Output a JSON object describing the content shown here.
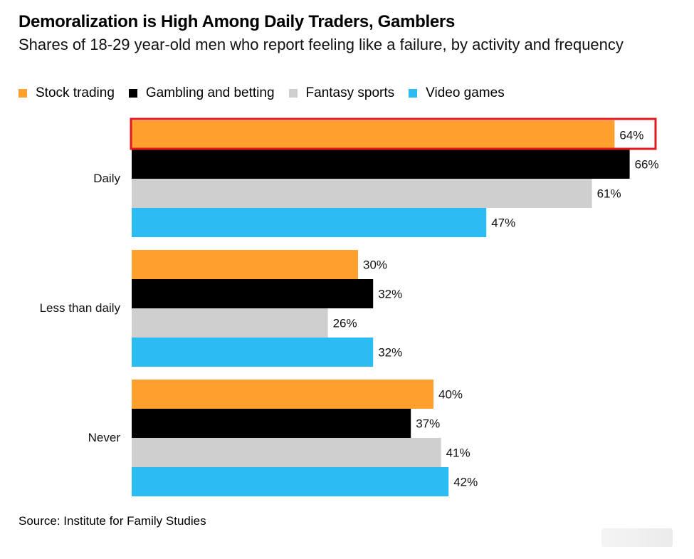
{
  "title": "Demoralization is High Among Daily Traders, Gamblers",
  "subtitle": "Shares of 18-29 year-old men who report feeling like a failure, by activity and frequency",
  "source": "Source: Institute for Family Studies",
  "colors": {
    "Stock trading": "#ff9f2e",
    "Gambling and betting": "#000000",
    "Fantasy sports": "#cfcfcf",
    "Video games": "#2bbcf3",
    "highlight": "#e0191f"
  },
  "chart_data": {
    "type": "bar",
    "orientation": "horizontal",
    "title": "Demoralization is High Among Daily Traders, Gamblers",
    "subtitle": "Shares of 18-29 year-old men who report feeling like a failure, by activity and frequency",
    "categories": [
      "Daily",
      "Less than daily",
      "Never"
    ],
    "series": [
      {
        "name": "Stock trading",
        "values": [
          64,
          30,
          40
        ],
        "labels": [
          "64%",
          "30%",
          "40%"
        ]
      },
      {
        "name": "Gambling and betting",
        "values": [
          66,
          32,
          37
        ],
        "labels": [
          "66%",
          "32%",
          "37%"
        ]
      },
      {
        "name": "Fantasy sports",
        "values": [
          61,
          26,
          41
        ],
        "labels": [
          "61%",
          "26%",
          "41%"
        ]
      },
      {
        "name": "Video games",
        "values": [
          47,
          32,
          42
        ],
        "labels": [
          "47%",
          "32%",
          "42%"
        ]
      }
    ],
    "unit": "%",
    "xlim": [
      0,
      66
    ],
    "grid": false,
    "legend": "top",
    "highlight": {
      "category": "Daily",
      "series": "Stock trading"
    },
    "source": "Source: Institute for Family Studies"
  }
}
